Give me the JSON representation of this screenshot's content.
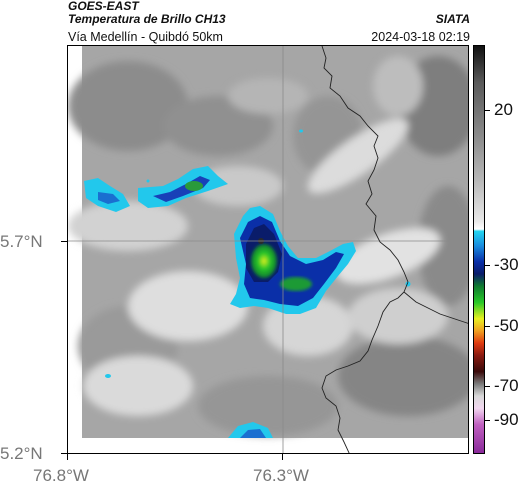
{
  "header": {
    "satellite": "GOES-EAST",
    "product": "Temperatura de Brillo CH13",
    "region": "Vía Medellín - Quibdó 50km",
    "organization": "SIATA",
    "timestamp": "2024-03-18 02:19"
  },
  "map": {
    "lat_labels": [
      "5.7°N",
      "5.2°N"
    ],
    "lon_labels": [
      "76.8°W",
      "76.3°W"
    ]
  },
  "colorbar": {
    "labels": [
      "20",
      "-30",
      "-50",
      "-70",
      "-90"
    ]
  },
  "colors": {
    "cloud_cyan": "#22c8ec",
    "cloud_blue": "#0a2fa8",
    "cloud_green": "#22c022",
    "cloud_yellow": "#e8f020",
    "grid_line": "#8a8a8a",
    "border_line": "#222222"
  }
}
